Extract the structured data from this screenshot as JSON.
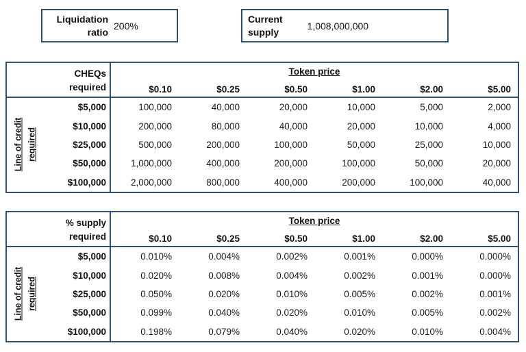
{
  "colors": {
    "border": "#2f506f",
    "text": "#111111",
    "background": "#ffffff"
  },
  "info_boxes": {
    "liquidation_ratio": {
      "label": "Liquidation\nratio",
      "value": "200%"
    },
    "current_supply": {
      "label": "Current\nsupply",
      "value": "1,008,000,000"
    }
  },
  "tables": [
    {
      "corner_label": "CHEQs\nrequired",
      "group_header": "Token price",
      "row_axis_label": "Line of credit\nrequired",
      "col_headers": [
        "$0.10",
        "$0.25",
        "$0.50",
        "$1.00",
        "$2.00",
        "$5.00"
      ],
      "rows": [
        {
          "label": "$5,000",
          "values": [
            "100,000",
            "40,000",
            "20,000",
            "10,000",
            "5,000",
            "2,000"
          ]
        },
        {
          "label": "$10,000",
          "values": [
            "200,000",
            "80,000",
            "40,000",
            "20,000",
            "10,000",
            "4,000"
          ]
        },
        {
          "label": "$25,000",
          "values": [
            "500,000",
            "200,000",
            "100,000",
            "50,000",
            "25,000",
            "10,000"
          ]
        },
        {
          "label": "$50,000",
          "values": [
            "1,000,000",
            "400,000",
            "200,000",
            "100,000",
            "50,000",
            "20,000"
          ]
        },
        {
          "label": "$100,000",
          "values": [
            "2,000,000",
            "800,000",
            "400,000",
            "200,000",
            "100,000",
            "40,000"
          ]
        }
      ]
    },
    {
      "corner_label": "% supply\nrequired",
      "group_header": "Token price",
      "row_axis_label": "Line of credit\nrequired",
      "col_headers": [
        "$0.10",
        "$0.25",
        "$0.50",
        "$1.00",
        "$2.00",
        "$5.00"
      ],
      "rows": [
        {
          "label": "$5,000",
          "values": [
            "0.010%",
            "0.004%",
            "0.002%",
            "0.001%",
            "0.000%",
            "0.000%"
          ]
        },
        {
          "label": "$10,000",
          "values": [
            "0.020%",
            "0.008%",
            "0.004%",
            "0.002%",
            "0.001%",
            "0.000%"
          ]
        },
        {
          "label": "$25,000",
          "values": [
            "0.050%",
            "0.020%",
            "0.010%",
            "0.005%",
            "0.002%",
            "0.001%"
          ]
        },
        {
          "label": "$50,000",
          "values": [
            "0.099%",
            "0.040%",
            "0.020%",
            "0.010%",
            "0.005%",
            "0.002%"
          ]
        },
        {
          "label": "$100,000",
          "values": [
            "0.198%",
            "0.079%",
            "0.040%",
            "0.020%",
            "0.010%",
            "0.004%"
          ]
        }
      ]
    }
  ]
}
